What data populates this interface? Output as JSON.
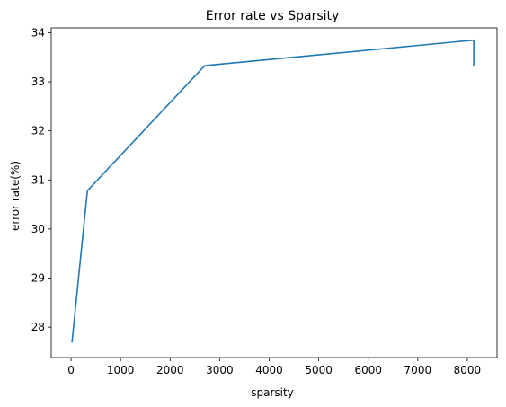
{
  "chart_data": {
    "type": "line",
    "title": "Error rate vs Sparsity",
    "xlabel": "sparsity",
    "ylabel": "error rate(%)",
    "xlim": [
      -400,
      8600
    ],
    "ylim": [
      27.38,
      34.1
    ],
    "xticks": [
      0,
      1000,
      2000,
      3000,
      4000,
      5000,
      6000,
      7000,
      8000
    ],
    "yticks": [
      28,
      29,
      30,
      31,
      32,
      33,
      34
    ],
    "grid": false,
    "series": [
      {
        "color": "#1f77b4",
        "x": [
          20,
          330,
          2700,
          8130,
          8130
        ],
        "y": [
          27.7,
          30.78,
          33.33,
          33.85,
          33.33
        ]
      }
    ]
  }
}
